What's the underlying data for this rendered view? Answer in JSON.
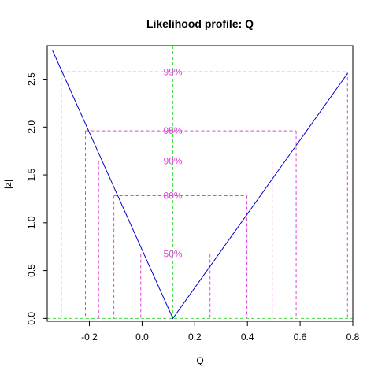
{
  "chart_data": {
    "type": "line",
    "title": "Likelihood profile: Q",
    "xlabel": "Q",
    "ylabel": "|z|",
    "xlim": [
      -0.36,
      0.8
    ],
    "ylim": [
      -0.03,
      2.85
    ],
    "x_ticks": [
      -0.2,
      0.0,
      0.2,
      0.4,
      0.6,
      0.8
    ],
    "x_tick_labels": [
      "-0.2",
      "0.0",
      "0.2",
      "0.4",
      "0.6",
      "0.8"
    ],
    "y_ticks": [
      0.0,
      0.5,
      1.0,
      1.5,
      2.0,
      2.5
    ],
    "y_tick_labels": [
      "0.0",
      "0.5",
      "1.0",
      "1.5",
      "2.0",
      "2.5"
    ],
    "estimate": 0.117,
    "series": [
      {
        "x": [
          -0.34,
          0.117,
          0.78
        ],
        "y": [
          2.8,
          0.0,
          2.56
        ],
        "color": "#0000cc"
      }
    ],
    "confidence_levels": [
      {
        "label": "50%",
        "z": 0.674,
        "lower": -0.005,
        "upper": 0.258
      },
      {
        "label": "80%",
        "z": 1.282,
        "lower": -0.107,
        "upper": 0.398
      },
      {
        "label": "90%",
        "z": 1.645,
        "lower": -0.165,
        "upper": 0.494
      },
      {
        "label": "95%",
        "z": 1.96,
        "lower": -0.215,
        "upper": 0.585
      },
      {
        "label": "99%",
        "z": 2.576,
        "lower": -0.307,
        "upper": 0.78
      }
    ],
    "colors": {
      "profile": "#0000cc",
      "levels": "#dd44dd",
      "reference": "#44dd44"
    },
    "grid": false
  }
}
